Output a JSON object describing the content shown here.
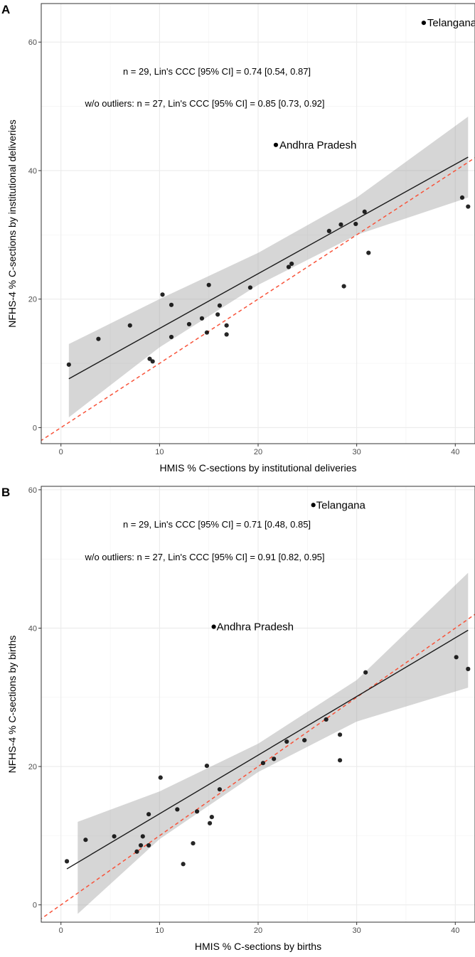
{
  "chart_data": [
    {
      "panel": "A",
      "type": "scatter",
      "xlabel": "HMIS % C-sections by institutional deliveries",
      "ylabel": "NFHS-4 % C-sections by institutional deliveries",
      "xlim": [
        -2,
        42
      ],
      "ylim": [
        -2.5,
        66
      ],
      "xticks": [
        0,
        10,
        20,
        30,
        40
      ],
      "yticks": [
        0,
        20,
        40,
        60
      ],
      "grid": true,
      "annotations": [
        "n = 29, Lin's CCC [95% CI] = 0.74 [0.54, 0.87]",
        "w/o outliers:  n = 27, Lin's CCC [95% CI] = 0.85 [0.73, 0.92]"
      ],
      "labeled_points": [
        {
          "label": "Telangana",
          "x": 36.8,
          "y": 63
        },
        {
          "label": "Andhra Pradesh",
          "x": 21.8,
          "y": 44
        }
      ],
      "points": [
        [
          0.8,
          9.8
        ],
        [
          3.8,
          13.8
        ],
        [
          7.0,
          15.9
        ],
        [
          9.0,
          10.7
        ],
        [
          9.3,
          10.3
        ],
        [
          10.3,
          20.7
        ],
        [
          11.2,
          19.1
        ],
        [
          11.2,
          14.1
        ],
        [
          13.0,
          16.1
        ],
        [
          14.3,
          17.0
        ],
        [
          14.8,
          14.8
        ],
        [
          15.0,
          22.2
        ],
        [
          15.9,
          17.6
        ],
        [
          16.1,
          19.0
        ],
        [
          16.8,
          15.9
        ],
        [
          16.8,
          14.5
        ],
        [
          19.2,
          21.8
        ],
        [
          23.1,
          25.0
        ],
        [
          23.4,
          25.5
        ],
        [
          27.2,
          30.6
        ],
        [
          28.4,
          31.6
        ],
        [
          28.7,
          22.0
        ],
        [
          29.9,
          31.7
        ],
        [
          30.8,
          33.6
        ],
        [
          31.2,
          27.2
        ],
        [
          40.7,
          35.8
        ],
        [
          41.3,
          34.4
        ]
      ],
      "fit_line": {
        "x": [
          0.8,
          41.3
        ],
        "y": [
          7.6,
          42.1
        ]
      },
      "ci_band": {
        "x": [
          0.8,
          10,
          20,
          30,
          41.3
        ],
        "lower": [
          1.6,
          12.5,
          22.2,
          30.0,
          35.8
        ],
        "upper": [
          13.0,
          20.0,
          27.2,
          35.8,
          48.4
        ]
      },
      "identity_line": true
    },
    {
      "panel": "B",
      "type": "scatter",
      "xlabel": "HMIS % C-sections by births",
      "ylabel": "NFHS-4 % C-sections by births",
      "xlim": [
        -2,
        42
      ],
      "ylim": [
        -2.5,
        60.5
      ],
      "xticks": [
        0,
        10,
        20,
        30,
        40
      ],
      "yticks": [
        0,
        20,
        40,
        60
      ],
      "grid": true,
      "annotations": [
        "n = 29, Lin's CCC [95% CI] = 0.71 [0.48, 0.85]",
        "w/o outliers:  n = 27, Lin's CCC [95% CI] = 0.91 [0.82, 0.95]"
      ],
      "labeled_points": [
        {
          "label": "Telangana",
          "x": 25.6,
          "y": 57.8
        },
        {
          "label": "Andhra Pradesh",
          "x": 15.5,
          "y": 40.2
        }
      ],
      "points": [
        [
          0.6,
          6.3
        ],
        [
          2.5,
          9.4
        ],
        [
          5.4,
          9.9
        ],
        [
          7.7,
          7.7
        ],
        [
          8.1,
          8.6
        ],
        [
          8.3,
          9.9
        ],
        [
          8.9,
          8.6
        ],
        [
          8.9,
          13.1
        ],
        [
          10.1,
          18.4
        ],
        [
          11.8,
          13.8
        ],
        [
          12.4,
          5.9
        ],
        [
          13.4,
          8.9
        ],
        [
          13.8,
          13.5
        ],
        [
          14.8,
          20.1
        ],
        [
          15.1,
          11.8
        ],
        [
          15.3,
          12.7
        ],
        [
          16.1,
          16.7
        ],
        [
          20.5,
          20.5
        ],
        [
          21.6,
          21.1
        ],
        [
          22.9,
          23.6
        ],
        [
          24.7,
          23.8
        ],
        [
          26.9,
          26.8
        ],
        [
          28.3,
          24.6
        ],
        [
          28.3,
          20.9
        ],
        [
          30.9,
          33.6
        ],
        [
          40.1,
          35.8
        ],
        [
          41.3,
          34.1
        ]
      ],
      "fit_line": {
        "x": [
          0.6,
          41.3
        ],
        "y": [
          5.2,
          39.7
        ]
      },
      "ci_band": {
        "x": [
          1.7,
          10,
          20,
          30,
          41.3
        ],
        "lower": [
          -1.3,
          9.5,
          19.2,
          26.5,
          31.4
        ],
        "upper": [
          12.0,
          16.4,
          23.3,
          32.5,
          48.0
        ]
      },
      "identity_line": true
    }
  ]
}
